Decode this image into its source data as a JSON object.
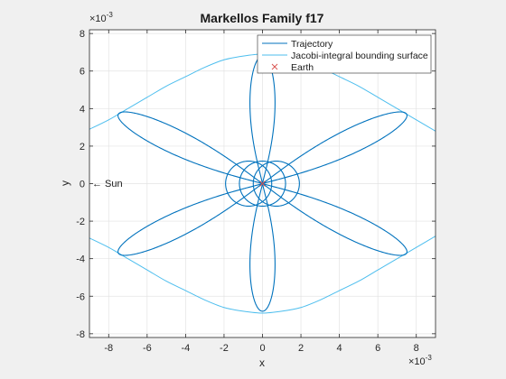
{
  "chart_data": {
    "type": "line",
    "title": "Markellos Family f17",
    "xlabel": "x",
    "ylabel": "y",
    "x_exponent_label": "×10",
    "x_exponent_power": "-3",
    "y_exponent_label": "×10",
    "y_exponent_power": "-3",
    "x_scale": 0.001,
    "y_scale": 0.001,
    "xlim": [
      -0.009,
      0.009
    ],
    "ylim": [
      -0.0082,
      0.0082
    ],
    "x_ticks": [
      -0.008,
      -0.006,
      -0.004,
      -0.002,
      0,
      0.002,
      0.004,
      0.006,
      0.008
    ],
    "x_tick_labels": [
      "-8",
      "-6",
      "-4",
      "-2",
      "0",
      "2",
      "4",
      "6",
      "8"
    ],
    "y_ticks": [
      -0.008,
      -0.006,
      -0.004,
      -0.002,
      0,
      0.002,
      0.004,
      0.006,
      0.008
    ],
    "y_tick_labels": [
      "-8",
      "-6",
      "-4",
      "-2",
      "0",
      "2",
      "4",
      "6",
      "8"
    ],
    "grid": true,
    "legend_position": "top-right",
    "colors": {
      "trajectory": "#0072bd",
      "bounding_surface": "#4dbeee",
      "earth_marker": "#d9534f",
      "axes_background": "#ffffff",
      "figure_background": "#f0f0f0",
      "grid": "#e3e3e3"
    },
    "series": [
      {
        "name": "Trajectory",
        "kind": "orbit",
        "description_values": {
          "lobe_tip_top": [
            0,
            0.0068
          ],
          "lobe_tip_bottom": [
            0,
            -0.0068
          ],
          "lobe_tip_upper_right": [
            0.0075,
            0.0037
          ],
          "lobe_tip_lower_right": [
            0.0075,
            -0.0037
          ],
          "lobe_tip_upper_left": [
            -0.0075,
            0.0037
          ],
          "lobe_tip_lower_left": [
            -0.0075,
            -0.0037
          ],
          "inner_loop_radius": 0.0012
        }
      },
      {
        "name": "Jacobi-integral bounding surface",
        "kind": "curve",
        "upper_curve": {
          "x": [
            -0.009,
            -0.008,
            -0.007,
            -0.006,
            -0.005,
            -0.004,
            -0.003,
            -0.002,
            -0.001,
            0,
            0.001,
            0.002,
            0.003,
            0.004,
            0.005,
            0.006,
            0.007,
            0.008,
            0.009
          ],
          "y": [
            0.0029,
            0.0034,
            0.004,
            0.0046,
            0.0052,
            0.0057,
            0.0062,
            0.0066,
            0.0068,
            0.0069,
            0.0068,
            0.0066,
            0.0062,
            0.0057,
            0.0052,
            0.0046,
            0.004,
            0.0034,
            0.0028
          ]
        },
        "lower_curve": {
          "x": [
            -0.009,
            -0.008,
            -0.007,
            -0.006,
            -0.005,
            -0.004,
            -0.003,
            -0.002,
            -0.001,
            0,
            0.001,
            0.002,
            0.003,
            0.004,
            0.005,
            0.006,
            0.007,
            0.008,
            0.009
          ],
          "y": [
            -0.0029,
            -0.0034,
            -0.004,
            -0.0046,
            -0.0052,
            -0.0057,
            -0.0062,
            -0.0066,
            -0.0068,
            -0.0069,
            -0.0068,
            -0.0066,
            -0.0062,
            -0.0057,
            -0.0052,
            -0.0046,
            -0.004,
            -0.0034,
            -0.0028
          ]
        }
      },
      {
        "name": "Earth",
        "kind": "marker",
        "marker": "x",
        "x": [
          0
        ],
        "y": [
          0
        ]
      }
    ],
    "annotations": [
      {
        "text": "← Sun",
        "x": -0.009,
        "y": 0
      }
    ]
  }
}
